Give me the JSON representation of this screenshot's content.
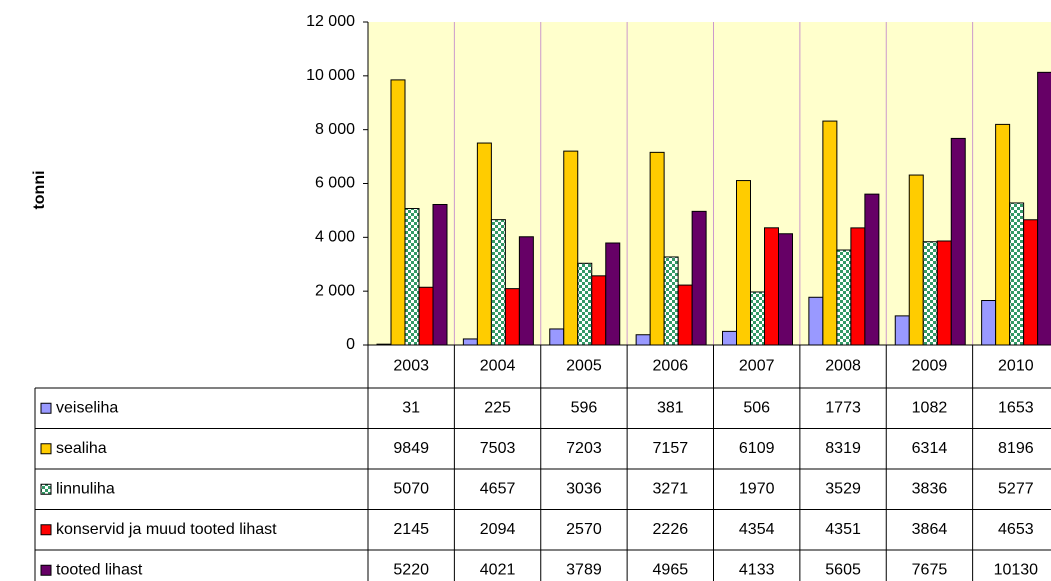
{
  "chart_data": {
    "type": "bar",
    "y_label": "tonni",
    "categories": [
      "2003",
      "2004",
      "2005",
      "2006",
      "2007",
      "2008",
      "2009",
      "2010"
    ],
    "series": [
      {
        "name": "veiseliha",
        "color": "#9999ff",
        "values": [
          31,
          225,
          596,
          381,
          506,
          1773,
          1082,
          1653
        ]
      },
      {
        "name": "sealiha",
        "color": "#ffcc00",
        "values": [
          9849,
          7503,
          7203,
          7157,
          6109,
          8319,
          6314,
          8196
        ]
      },
      {
        "name": "linnuliha",
        "color": "#339966",
        "pattern": "checker",
        "values": [
          5070,
          4657,
          3036,
          3271,
          1970,
          3529,
          3836,
          5277
        ]
      },
      {
        "name": "konservid ja muud tooted lihast",
        "color": "#ff0000",
        "values": [
          2145,
          2094,
          2570,
          2226,
          4354,
          4351,
          3864,
          4653
        ]
      },
      {
        "name": "tooted lihast",
        "color": "#660066",
        "values": [
          5220,
          4021,
          3789,
          4965,
          4133,
          5605,
          7675,
          10130
        ]
      }
    ],
    "ylim": [
      0,
      12000
    ],
    "yticks": [
      0,
      {
        "value": 2000,
        "label": "2 000"
      },
      {
        "value": 4000,
        "label": "4 000"
      },
      {
        "value": 6000,
        "label": "6 000"
      },
      {
        "value": 8000,
        "label": "8 000"
      },
      {
        "value": 10000,
        "label": "10 000"
      },
      {
        "value": 12000,
        "label": "12 000"
      }
    ],
    "plot_background": "#ffffcc",
    "grid_color": "#cc99cc"
  }
}
